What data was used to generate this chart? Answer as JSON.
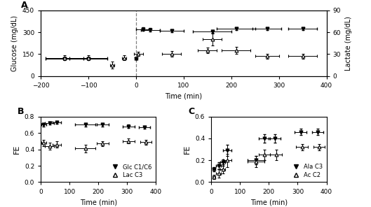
{
  "panel_A": {
    "glucose_x": [
      -150,
      -100,
      0,
      15,
      30,
      75,
      160,
      210,
      275,
      350
    ],
    "glucose_y": [
      120,
      120,
      120,
      320,
      315,
      310,
      305,
      325,
      325,
      325
    ],
    "glucose_xerr": [
      40,
      40,
      3,
      15,
      20,
      25,
      40,
      40,
      30,
      30
    ],
    "glucose_yerr": [
      8,
      8,
      8,
      12,
      12,
      10,
      10,
      8,
      8,
      8
    ],
    "lactate_x": [
      -150,
      -100,
      -50,
      -25,
      5,
      75,
      150,
      160,
      210,
      275,
      350
    ],
    "lactate_y": [
      25,
      25,
      15,
      25,
      30,
      30,
      35,
      50,
      35,
      27,
      27
    ],
    "lactate_xerr": [
      40,
      40,
      5,
      5,
      10,
      20,
      20,
      20,
      30,
      25,
      30
    ],
    "lactate_yerr": [
      3,
      3,
      5,
      3,
      3,
      4,
      4,
      8,
      5,
      3,
      3
    ],
    "xlim": [
      -200,
      400
    ],
    "ylim_glc": [
      0,
      450
    ],
    "ylim_lac": [
      0,
      90
    ],
    "xlabel": "Time (min)",
    "ylabel_left": "Glucose (mg/dL)",
    "ylabel_right": "Lactate (mg/dL)",
    "dashed_x": 0,
    "yticks_glc": [
      0,
      150,
      300,
      450
    ],
    "yticks_lac": [
      0,
      30,
      60,
      90
    ],
    "xticks": [
      -200,
      -100,
      0,
      100,
      200,
      300,
      400
    ]
  },
  "panel_B": {
    "glc_x": [
      10,
      30,
      55,
      155,
      215,
      305,
      360
    ],
    "glc_y": [
      0.7,
      0.72,
      0.73,
      0.7,
      0.7,
      0.68,
      0.67
    ],
    "glc_xerr": [
      8,
      15,
      15,
      35,
      20,
      20,
      20
    ],
    "glc_yerr": [
      0.02,
      0.02,
      0.02,
      0.02,
      0.02,
      0.02,
      0.02
    ],
    "lac_x": [
      10,
      30,
      55,
      155,
      215,
      305,
      365
    ],
    "lac_y": [
      0.48,
      0.44,
      0.46,
      0.41,
      0.47,
      0.5,
      0.49
    ],
    "lac_xerr": [
      8,
      15,
      15,
      35,
      20,
      20,
      20
    ],
    "lac_yerr": [
      0.04,
      0.04,
      0.04,
      0.05,
      0.03,
      0.03,
      0.03
    ],
    "xlim": [
      0,
      400
    ],
    "ylim": [
      0.0,
      0.8
    ],
    "xlabel": "Time (min)",
    "ylabel": "FE",
    "yticks": [
      0.0,
      0.2,
      0.4,
      0.6,
      0.8
    ],
    "xticks": [
      0,
      100,
      200,
      300,
      400
    ],
    "legend_glc": "Glc C1/C6",
    "legend_lac": "Lac C3"
  },
  "panel_C": {
    "ala_x": [
      10,
      25,
      40,
      55,
      155,
      185,
      220,
      310,
      370
    ],
    "ala_y": [
      0.12,
      0.15,
      0.18,
      0.29,
      0.2,
      0.4,
      0.4,
      0.46,
      0.46
    ],
    "ala_xerr": [
      5,
      8,
      8,
      15,
      30,
      20,
      20,
      20,
      20
    ],
    "ala_yerr": [
      0.02,
      0.03,
      0.03,
      0.05,
      0.04,
      0.04,
      0.04,
      0.03,
      0.03
    ],
    "ac_x": [
      10,
      25,
      40,
      55,
      155,
      185,
      225,
      315,
      375
    ],
    "ac_y": [
      0.05,
      0.08,
      0.12,
      0.2,
      0.19,
      0.25,
      0.25,
      0.32,
      0.32
    ],
    "ac_xerr": [
      5,
      8,
      8,
      15,
      30,
      20,
      20,
      20,
      20
    ],
    "ac_yerr": [
      0.02,
      0.04,
      0.04,
      0.06,
      0.05,
      0.05,
      0.05,
      0.03,
      0.03
    ],
    "xlim": [
      0,
      400
    ],
    "ylim": [
      0.0,
      0.6
    ],
    "xlabel": "Time (min)",
    "ylabel": "FE",
    "yticks": [
      0.0,
      0.2,
      0.4,
      0.6
    ],
    "xticks": [
      0,
      100,
      200,
      300,
      400
    ],
    "legend_ala": "Ala C3",
    "legend_ac": "Ac C2"
  },
  "marker_filled": "v",
  "marker_open": "^",
  "color": "black",
  "fontsize": 7,
  "label_fontsize": 8
}
